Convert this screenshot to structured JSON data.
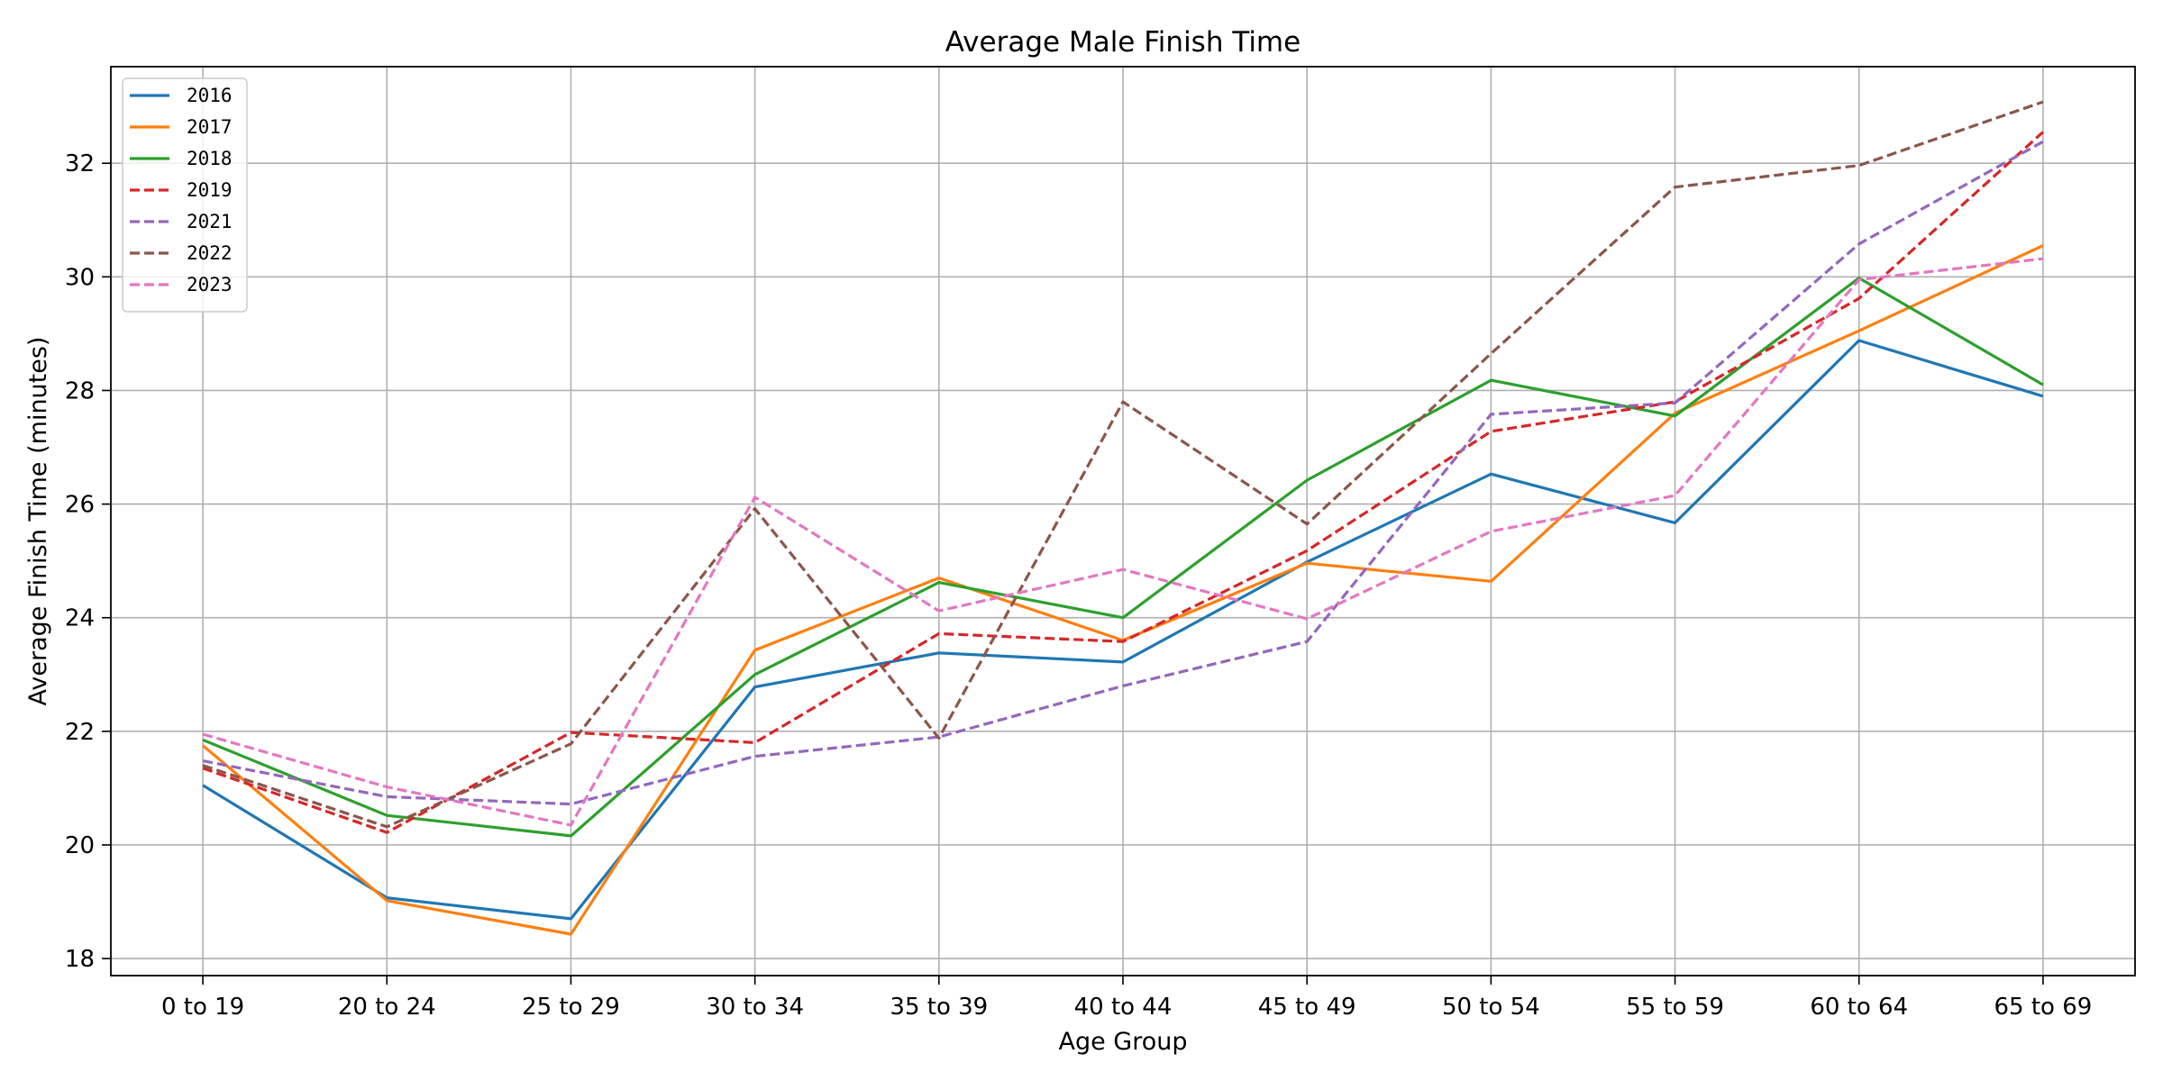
{
  "chart_data": {
    "type": "line",
    "title": "Average Male Finish Time",
    "xlabel": "Age Group",
    "ylabel": "Average Finish Time (minutes)",
    "categories": [
      "0 to 19",
      "20 to 24",
      "25 to 29",
      "30 to 34",
      "35 to 39",
      "40 to 44",
      "45 to 49",
      "50 to 54",
      "55 to 59",
      "60 to 64",
      "65 to 69"
    ],
    "ylim": [
      17.7,
      33.7
    ],
    "yticks": [
      18,
      20,
      22,
      24,
      26,
      28,
      30,
      32
    ],
    "grid": true,
    "legend_position": "top-left",
    "series": [
      {
        "name": "2016",
        "color": "#1f77b4",
        "dash": "solid",
        "values": [
          21.05,
          19.07,
          18.7,
          22.78,
          23.38,
          23.22,
          24.98,
          26.53,
          25.67,
          28.88,
          27.9
        ]
      },
      {
        "name": "2017",
        "color": "#ff7f0e",
        "dash": "solid",
        "values": [
          21.75,
          19.02,
          18.43,
          23.43,
          24.7,
          23.6,
          24.96,
          24.64,
          27.6,
          29.05,
          30.55
        ]
      },
      {
        "name": "2018",
        "color": "#2ca02c",
        "dash": "solid",
        "values": [
          21.85,
          20.52,
          20.16,
          23.0,
          24.62,
          24.0,
          26.42,
          28.18,
          27.55,
          29.98,
          28.1
        ]
      },
      {
        "name": "2019",
        "color": "#d62728",
        "dash": "dashed",
        "values": [
          21.35,
          20.22,
          21.98,
          21.8,
          23.72,
          23.58,
          25.18,
          27.28,
          27.8,
          29.62,
          32.55
        ]
      },
      {
        "name": "2021",
        "color": "#9467bd",
        "dash": "dashed",
        "values": [
          21.48,
          20.85,
          20.72,
          21.56,
          21.9,
          22.8,
          23.58,
          27.58,
          27.78,
          30.58,
          32.38
        ]
      },
      {
        "name": "2022",
        "color": "#8c564b",
        "dash": "dashed",
        "values": [
          21.4,
          20.32,
          21.78,
          25.92,
          21.88,
          27.8,
          25.65,
          28.65,
          31.58,
          31.96,
          33.08
        ]
      },
      {
        "name": "2023",
        "color": "#e377c2",
        "dash": "dashed",
        "values": [
          21.95,
          21.02,
          20.35,
          26.12,
          24.12,
          24.85,
          23.98,
          25.52,
          26.15,
          29.95,
          30.32
        ]
      }
    ]
  }
}
